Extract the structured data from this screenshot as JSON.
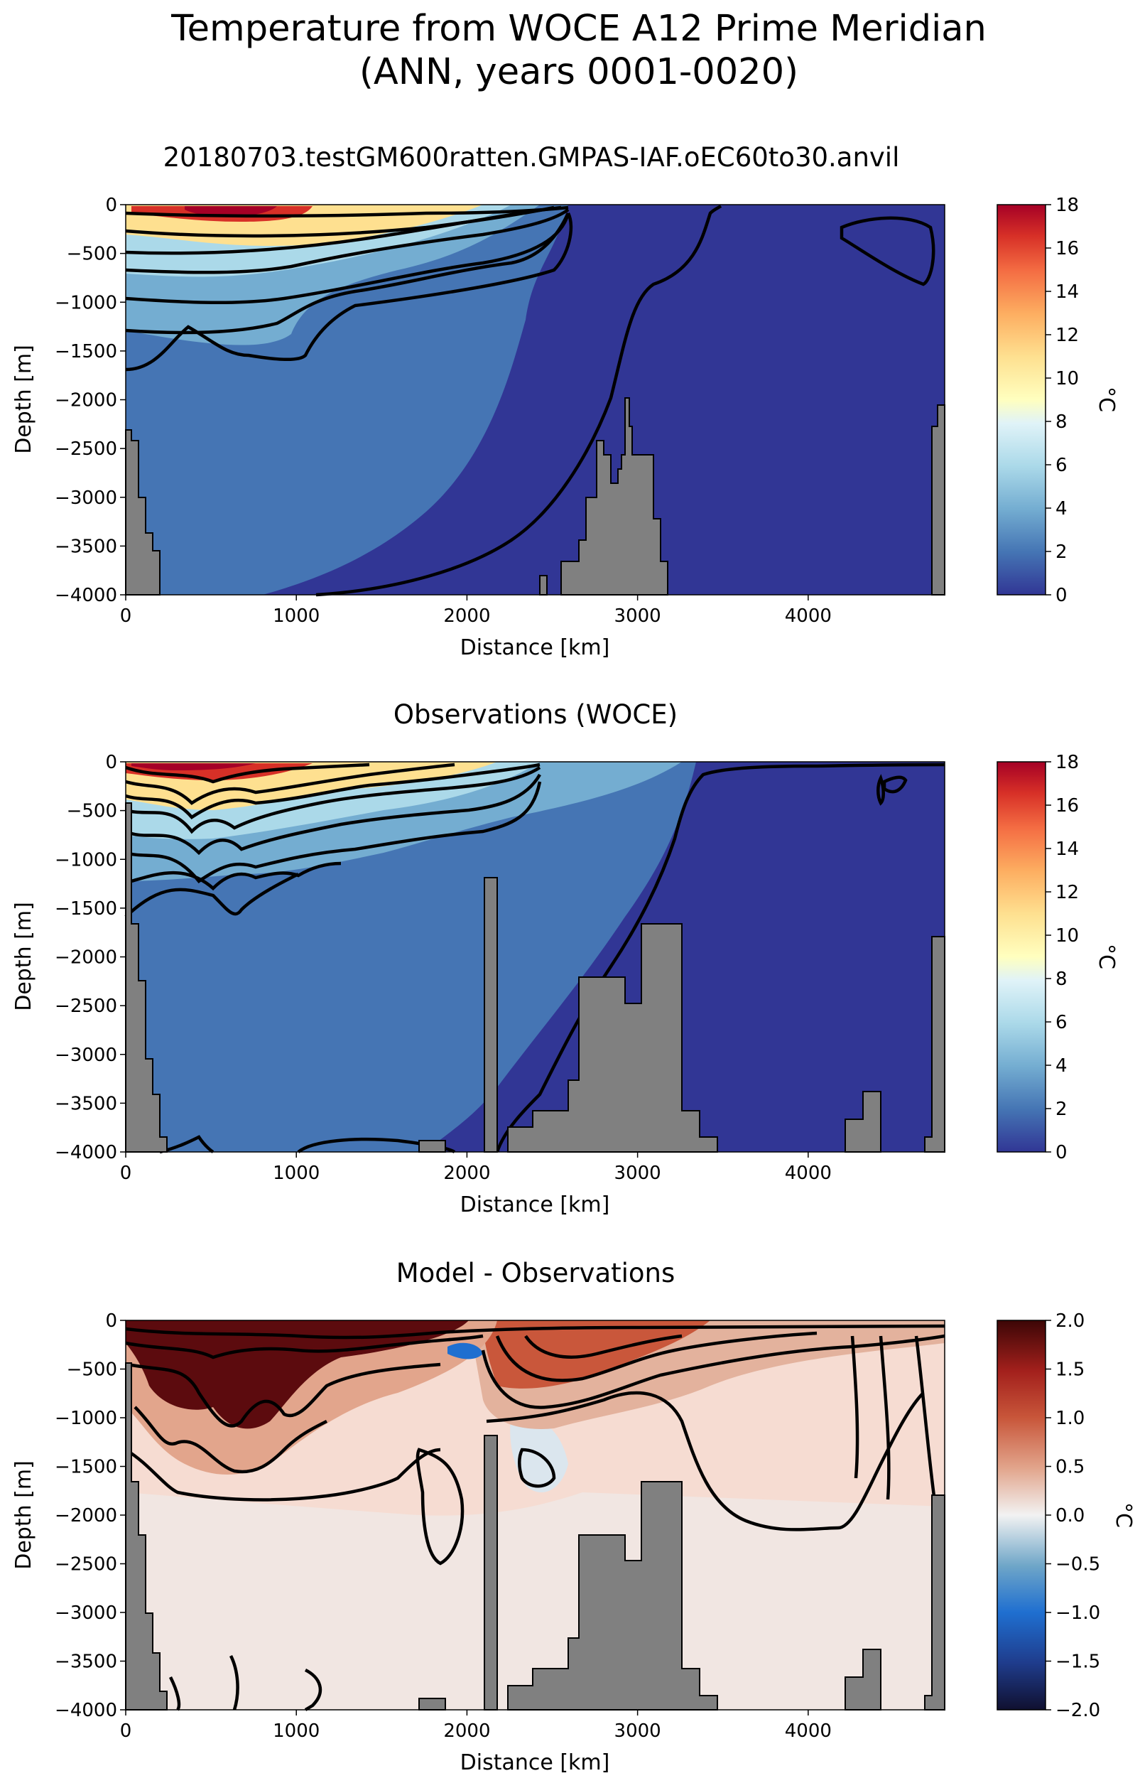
{
  "figure": {
    "title_line1": "Temperature from WOCE A12 Prime Meridian",
    "title_line2": "(ANN, years 0001-0020)"
  },
  "chart_data": [
    {
      "type": "heatmap",
      "title": "20180703.testGM600ratten.GMPAS-IAF.oEC60to30.anvil",
      "xlabel": "Distance [km]",
      "ylabel": "Depth [m]",
      "xlim": [
        0,
        4800
      ],
      "ylim": [
        -4000,
        0
      ],
      "xticks": [
        0,
        1000,
        2000,
        3000,
        4000
      ],
      "yticks": [
        0,
        -500,
        -1000,
        -1500,
        -2000,
        -2500,
        -3000,
        -3500,
        -4000
      ],
      "colorbar": {
        "label": "°C",
        "min": 0,
        "max": 18,
        "ticks": [
          0,
          2,
          4,
          6,
          8,
          10,
          12,
          14,
          16,
          18
        ],
        "colormap": "RdYlBu_r"
      },
      "contour_levels": [
        0,
        2,
        4,
        6,
        8,
        10,
        12,
        14,
        16,
        18
      ],
      "grid": false
    },
    {
      "type": "heatmap",
      "title": "Observations (WOCE)",
      "xlabel": "Distance [km]",
      "ylabel": "Depth [m]",
      "xlim": [
        0,
        4800
      ],
      "ylim": [
        -4000,
        0
      ],
      "xticks": [
        0,
        1000,
        2000,
        3000,
        4000
      ],
      "yticks": [
        0,
        -500,
        -1000,
        -1500,
        -2000,
        -2500,
        -3000,
        -3500,
        -4000
      ],
      "colorbar": {
        "label": "°C",
        "min": 0,
        "max": 18,
        "ticks": [
          0,
          2,
          4,
          6,
          8,
          10,
          12,
          14,
          16,
          18
        ],
        "colormap": "RdYlBu_r"
      },
      "contour_levels": [
        0,
        2,
        4,
        6,
        8,
        10,
        12,
        14,
        16,
        18
      ],
      "grid": false
    },
    {
      "type": "heatmap",
      "title": "Model - Observations",
      "xlabel": "Distance [km]",
      "ylabel": "Depth [m]",
      "xlim": [
        0,
        4800
      ],
      "ylim": [
        -4000,
        0
      ],
      "xticks": [
        0,
        1000,
        2000,
        3000,
        4000
      ],
      "yticks": [
        0,
        -500,
        -1000,
        -1500,
        -2000,
        -2500,
        -3000,
        -3500,
        -4000
      ],
      "colorbar": {
        "label": "°C",
        "min": -2.0,
        "max": 2.0,
        "ticks": [
          -2.0,
          -1.5,
          -1.0,
          -0.5,
          0.0,
          0.5,
          1.0,
          1.5,
          2.0
        ],
        "colormap": "RdBu_r"
      },
      "contour_levels": [
        -2.0,
        -1.5,
        -1.0,
        -0.5,
        0.0,
        0.5,
        1.0,
        1.5,
        2.0
      ],
      "grid": false
    }
  ]
}
